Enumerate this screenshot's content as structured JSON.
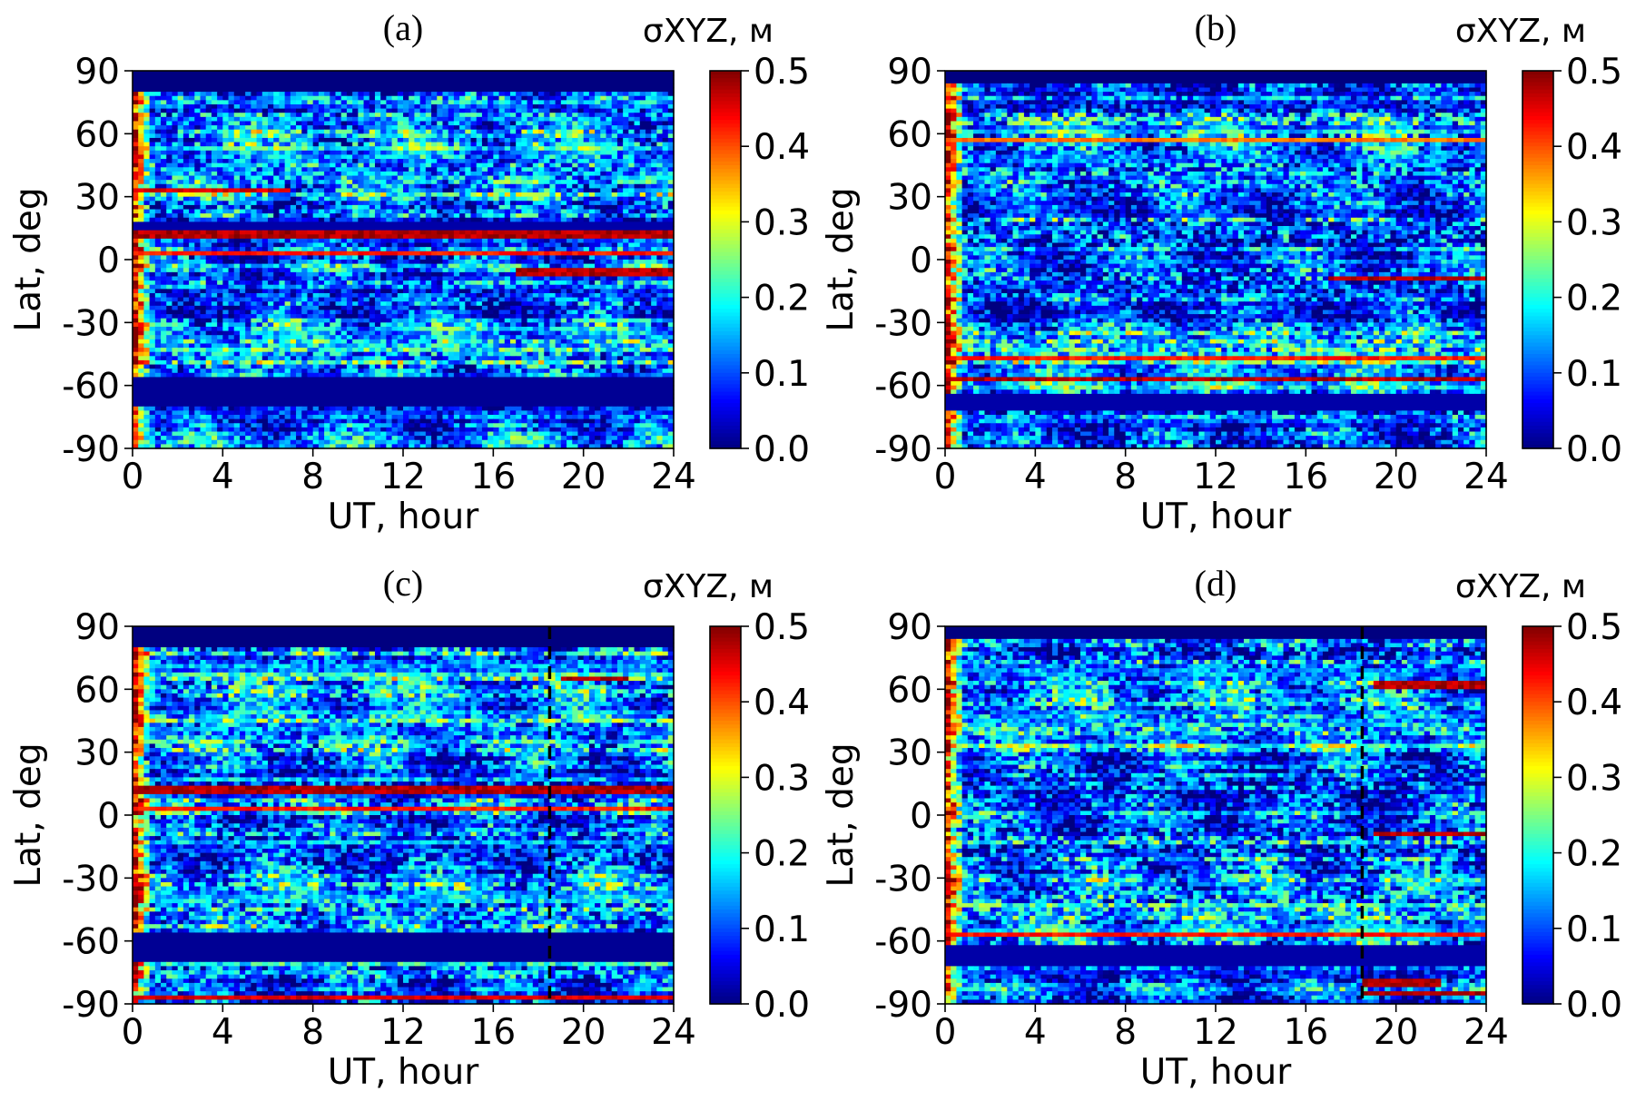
{
  "chart_data": [
    {
      "type": "heatmap",
      "title": "(a)",
      "xlabel": "UT, hour",
      "ylabel": "Lat, deg",
      "xlim": [
        0,
        24
      ],
      "ylim": [
        -90,
        90
      ],
      "xticks": [
        "0",
        "4",
        "8",
        "12",
        "16",
        "20",
        "24"
      ],
      "yticks": [
        "90",
        "60",
        "30",
        "0",
        "-30",
        "-60",
        "-90"
      ],
      "colorbar": {
        "title": "σXYZ, м",
        "range": [
          0.0,
          0.5
        ],
        "ticks": [
          "0.5",
          "0.4",
          "0.3",
          "0.2",
          "0.1",
          "0.0"
        ],
        "colormap": "jet"
      },
      "marker_ut": null,
      "seed": 11,
      "zones": [
        {
          "lat": [
            80,
            90
          ],
          "level": 0.0
        },
        {
          "lat": [
            -70,
            -56
          ],
          "level": 0.01
        },
        {
          "lat": [
            14,
            17
          ],
          "level": 0.02
        }
      ],
      "hot_streaks": [
        {
          "lat": 12,
          "ut": [
            0,
            24
          ],
          "level": 0.5
        },
        {
          "lat": 3,
          "ut": [
            0,
            24
          ],
          "level": 0.45
        },
        {
          "lat": 33,
          "ut": [
            0,
            7
          ],
          "level": 0.48
        },
        {
          "lat": -6,
          "ut": [
            17,
            24
          ],
          "level": 0.5
        }
      ],
      "dawn_edge": true
    },
    {
      "type": "heatmap",
      "title": "(b)",
      "xlabel": "UT, hour",
      "ylabel": "Lat, deg",
      "xlim": [
        0,
        24
      ],
      "ylim": [
        -90,
        90
      ],
      "xticks": [
        "0",
        "4",
        "8",
        "12",
        "16",
        "20",
        "24"
      ],
      "yticks": [
        "90",
        "60",
        "30",
        "0",
        "-30",
        "-60",
        "-90"
      ],
      "colorbar": {
        "title": "σXYZ, м",
        "range": [
          0.0,
          0.5
        ],
        "ticks": [
          "0.5",
          "0.4",
          "0.3",
          "0.2",
          "0.1",
          "0.0"
        ],
        "colormap": "jet"
      },
      "marker_ut": null,
      "seed": 23,
      "zones": [
        {
          "lat": [
            84,
            90
          ],
          "level": 0.0
        },
        {
          "lat": [
            -72,
            -64
          ],
          "level": 0.02
        }
      ],
      "hot_streaks": [
        {
          "lat": -57,
          "ut": [
            0,
            24
          ],
          "level": 0.5
        },
        {
          "lat": -9,
          "ut": [
            17,
            24
          ],
          "level": 0.5
        },
        {
          "lat": -47,
          "ut": [
            0,
            24
          ],
          "level": 0.45
        },
        {
          "lat": 57,
          "ut": [
            0,
            24
          ],
          "level": 0.4
        }
      ],
      "dawn_edge": true
    },
    {
      "type": "heatmap",
      "title": "(c)",
      "xlabel": "UT, hour",
      "ylabel": "Lat, deg",
      "xlim": [
        0,
        24
      ],
      "ylim": [
        -90,
        90
      ],
      "xticks": [
        "0",
        "4",
        "8",
        "12",
        "16",
        "20",
        "24"
      ],
      "yticks": [
        "90",
        "60",
        "30",
        "0",
        "-30",
        "-60",
        "-90"
      ],
      "colorbar": {
        "title": "σXYZ, м",
        "range": [
          0.0,
          0.5
        ],
        "ticks": [
          "0.5",
          "0.4",
          "0.3",
          "0.2",
          "0.1",
          "0.0"
        ],
        "colormap": "jet"
      },
      "marker_ut": 18.5,
      "seed": 37,
      "zones": [
        {
          "lat": [
            80,
            90
          ],
          "level": 0.0
        },
        {
          "lat": [
            -70,
            -57
          ],
          "level": 0.01
        }
      ],
      "hot_streaks": [
        {
          "lat": 12,
          "ut": [
            0,
            24
          ],
          "level": 0.5
        },
        {
          "lat": 3,
          "ut": [
            0,
            24
          ],
          "level": 0.45
        },
        {
          "lat": -87,
          "ut": [
            0,
            24
          ],
          "level": 0.48
        },
        {
          "lat": 65,
          "ut": [
            19,
            22
          ],
          "level": 0.5
        }
      ],
      "dawn_edge": true
    },
    {
      "type": "heatmap",
      "title": "(d)",
      "xlabel": "UT, hour",
      "ylabel": "Lat, deg",
      "xlim": [
        0,
        24
      ],
      "ylim": [
        -90,
        90
      ],
      "xticks": [
        "0",
        "4",
        "8",
        "12",
        "16",
        "20",
        "24"
      ],
      "yticks": [
        "90",
        "60",
        "30",
        "0",
        "-30",
        "-60",
        "-90"
      ],
      "colorbar": {
        "title": "σXYZ, м",
        "range": [
          0.0,
          0.5
        ],
        "ticks": [
          "0.5",
          "0.4",
          "0.3",
          "0.2",
          "0.1",
          "0.0"
        ],
        "colormap": "jet"
      },
      "marker_ut": 18.5,
      "seed": 51,
      "zones": [
        {
          "lat": [
            84,
            90
          ],
          "level": 0.0
        },
        {
          "lat": [
            -72,
            -62
          ],
          "level": 0.02
        }
      ],
      "hot_streaks": [
        {
          "lat": -57,
          "ut": [
            0,
            24
          ],
          "level": 0.45
        },
        {
          "lat": -9,
          "ut": [
            19,
            24
          ],
          "level": 0.5
        },
        {
          "lat": 62,
          "ut": [
            19,
            24
          ],
          "level": 0.5
        },
        {
          "lat": -85,
          "ut": [
            18.5,
            24
          ],
          "level": 0.5
        },
        {
          "lat": -80,
          "ut": [
            18.5,
            22
          ],
          "level": 0.5
        }
      ],
      "dawn_edge": true
    }
  ]
}
